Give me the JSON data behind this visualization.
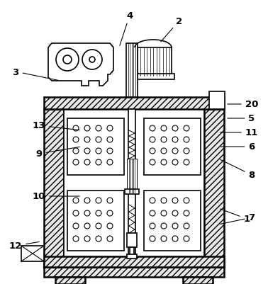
{
  "bg_color": "#ffffff",
  "line_color": "#000000",
  "figsize": [
    3.78,
    4.02
  ],
  "dpi": 100,
  "labels": {
    "1": [
      348,
      310,
      308,
      295
    ],
    "2": [
      253,
      30,
      225,
      62
    ],
    "3": [
      22,
      102,
      85,
      115
    ],
    "4": [
      183,
      22,
      168,
      68
    ],
    "5": [
      355,
      168,
      318,
      168
    ],
    "6": [
      355,
      208,
      308,
      208
    ],
    "7": [
      355,
      308,
      308,
      318
    ],
    "8": [
      355,
      248,
      308,
      225
    ],
    "9": [
      55,
      218,
      115,
      208
    ],
    "10": [
      55,
      278,
      115,
      278
    ],
    "11": [
      355,
      188,
      308,
      188
    ],
    "12": [
      22,
      348,
      58,
      342
    ],
    "13": [
      55,
      178,
      115,
      185
    ],
    "20": [
      355,
      148,
      318,
      148
    ]
  }
}
